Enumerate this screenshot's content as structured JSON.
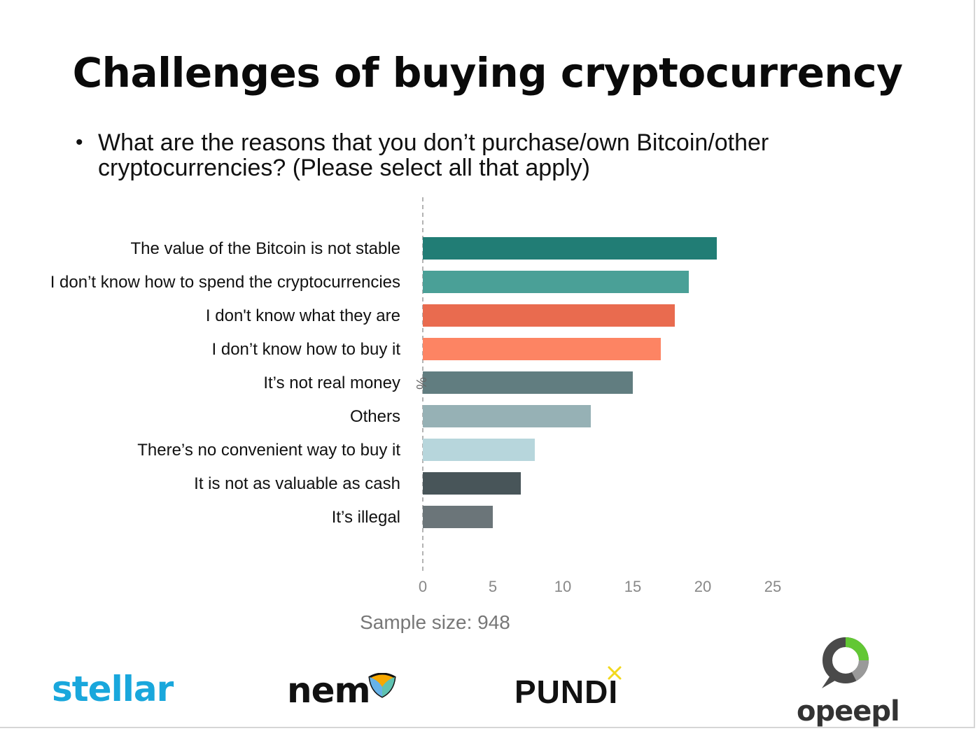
{
  "slide": {
    "title": "Challenges of buying cryptocurrency",
    "question": "What are the reasons that you don’t purchase/own Bitcoin/other cryptocurrencies? (Please select all that apply)",
    "sample_size": "Sample size: 948"
  },
  "chart_data": {
    "type": "bar",
    "orientation": "horizontal",
    "categories": [
      "The value of the Bitcoin is not stable",
      "I don’t know how to spend the cryptocurrencies",
      "I don't know what they are",
      "I don’t know how to buy it",
      "It’s not real money",
      "Others",
      "There’s no convenient way to buy it",
      "It is not as valuable as cash",
      "It’s illegal"
    ],
    "values": [
      21,
      19,
      18,
      17,
      15,
      12,
      8,
      7,
      5
    ],
    "colors": [
      "#217d75",
      "#4aa097",
      "#e96b4f",
      "#fd8463",
      "#617d80",
      "#96b1b5",
      "#b7d6dc",
      "#485559",
      "#6b7579"
    ],
    "axis_label": "%",
    "xlim": [
      0,
      25
    ],
    "ticks": [
      0,
      5,
      10,
      15,
      20,
      25
    ],
    "grid": false
  },
  "logos": {
    "stellar": "stellar",
    "nem": "nem",
    "pundi": "PUNDI",
    "opeepl": "opeepl"
  }
}
